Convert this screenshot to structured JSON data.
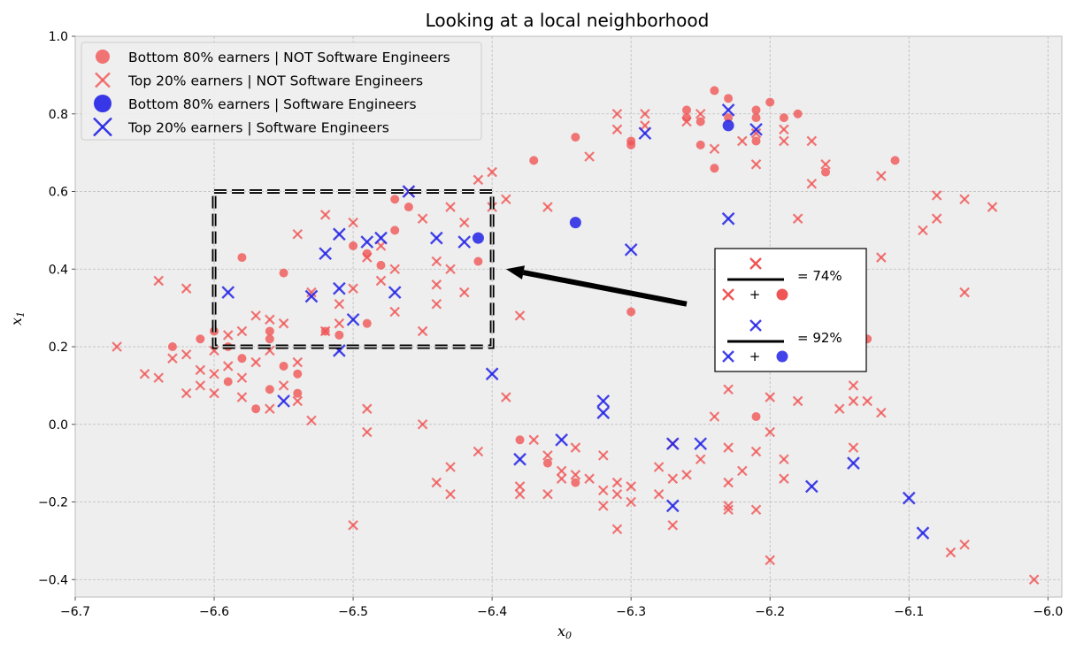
{
  "chart_data": {
    "type": "scatter",
    "title": "Looking at a local neighborhood",
    "xlabel": "x",
    "xlabel_sub": "0",
    "ylabel": "x",
    "ylabel_sub": "1",
    "xlim": [
      -6.7,
      -5.99
    ],
    "ylim": [
      -0.445,
      1.0
    ],
    "xticks": [
      -6.7,
      -6.6,
      -6.5,
      -6.4,
      -6.3,
      -6.2,
      -6.1,
      -6.0
    ],
    "xtick_labels": [
      "−6.7",
      "−6.6",
      "−6.5",
      "−6.4",
      "−6.3",
      "−6.2",
      "−6.1",
      "−6.0"
    ],
    "yticks": [
      1.0,
      0.8,
      0.6,
      0.4,
      0.2,
      0.0,
      -0.2,
      -0.4
    ],
    "ytick_labels": [
      "1.0",
      "0.8",
      "0.6",
      "0.4",
      "0.2",
      "0.0",
      "−0.2",
      "−0.4"
    ],
    "grid": true,
    "legend_position": "top-left",
    "colors": {
      "not_se": "#f05555",
      "se": "#2222e6",
      "background": "#eeeeee",
      "grid": "#bbbbbb"
    },
    "series": [
      {
        "name": "Bottom 80% earners | NOT Software Engineers",
        "marker": "circle",
        "color": "#f05555",
        "points": [
          [
            -6.63,
            0.2
          ],
          [
            -6.61,
            0.22
          ],
          [
            -6.6,
            0.24
          ],
          [
            -6.59,
            0.2
          ],
          [
            -6.59,
            0.11
          ],
          [
            -6.58,
            0.17
          ],
          [
            -6.58,
            0.43
          ],
          [
            -6.57,
            0.04
          ],
          [
            -6.56,
            0.24
          ],
          [
            -6.56,
            0.09
          ],
          [
            -6.56,
            0.22
          ],
          [
            -6.55,
            0.39
          ],
          [
            -6.55,
            0.15
          ],
          [
            -6.54,
            0.08
          ],
          [
            -6.54,
            0.13
          ],
          [
            -6.52,
            0.24
          ],
          [
            -6.51,
            0.23
          ],
          [
            -6.5,
            0.46
          ],
          [
            -6.49,
            0.26
          ],
          [
            -6.49,
            0.44
          ],
          [
            -6.48,
            0.41
          ],
          [
            -6.47,
            0.5
          ],
          [
            -6.47,
            0.58
          ],
          [
            -6.46,
            0.56
          ],
          [
            -6.41,
            0.42
          ],
          [
            -6.38,
            -0.04
          ],
          [
            -6.37,
            0.68
          ],
          [
            -6.36,
            -0.1
          ],
          [
            -6.34,
            -0.15
          ],
          [
            -6.34,
            0.74
          ],
          [
            -6.3,
            0.72
          ],
          [
            -6.3,
            0.73
          ],
          [
            -6.3,
            0.29
          ],
          [
            -6.26,
            0.81
          ],
          [
            -6.26,
            0.79
          ],
          [
            -6.25,
            0.78
          ],
          [
            -6.25,
            0.72
          ],
          [
            -6.24,
            0.86
          ],
          [
            -6.24,
            0.66
          ],
          [
            -6.23,
            0.79
          ],
          [
            -6.23,
            0.84
          ],
          [
            -6.21,
            0.79
          ],
          [
            -6.21,
            0.81
          ],
          [
            -6.21,
            0.73
          ],
          [
            -6.2,
            0.83
          ],
          [
            -6.19,
            0.79
          ],
          [
            -6.18,
            0.8
          ],
          [
            -6.16,
            0.65
          ],
          [
            -6.11,
            0.68
          ],
          [
            -6.13,
            0.22
          ],
          [
            -6.21,
            0.02
          ]
        ]
      },
      {
        "name": "Top 20% earners | NOT Software Engineers",
        "marker": "x",
        "color": "#f05555",
        "points": [
          [
            -6.67,
            0.2
          ],
          [
            -6.65,
            0.13
          ],
          [
            -6.64,
            0.37
          ],
          [
            -6.64,
            0.12
          ],
          [
            -6.63,
            0.17
          ],
          [
            -6.62,
            0.35
          ],
          [
            -6.62,
            0.08
          ],
          [
            -6.62,
            0.18
          ],
          [
            -6.61,
            0.14
          ],
          [
            -6.61,
            0.1
          ],
          [
            -6.6,
            0.19
          ],
          [
            -6.6,
            0.13
          ],
          [
            -6.6,
            0.08
          ],
          [
            -6.59,
            0.15
          ],
          [
            -6.59,
            0.23
          ],
          [
            -6.58,
            0.12
          ],
          [
            -6.58,
            0.07
          ],
          [
            -6.58,
            0.24
          ],
          [
            -6.57,
            0.28
          ],
          [
            -6.57,
            0.16
          ],
          [
            -6.56,
            0.19
          ],
          [
            -6.56,
            0.04
          ],
          [
            -6.56,
            0.27
          ],
          [
            -6.55,
            0.1
          ],
          [
            -6.55,
            0.26
          ],
          [
            -6.54,
            0.06
          ],
          [
            -6.54,
            0.49
          ],
          [
            -6.54,
            0.16
          ],
          [
            -6.53,
            0.34
          ],
          [
            -6.53,
            0.01
          ],
          [
            -6.52,
            0.24
          ],
          [
            -6.52,
            0.54
          ],
          [
            -6.51,
            0.31
          ],
          [
            -6.51,
            0.26
          ],
          [
            -6.5,
            0.52
          ],
          [
            -6.5,
            0.35
          ],
          [
            -6.49,
            0.43
          ],
          [
            -6.49,
            -0.02
          ],
          [
            -6.49,
            0.04
          ],
          [
            -6.48,
            0.37
          ],
          [
            -6.48,
            0.46
          ],
          [
            -6.47,
            0.29
          ],
          [
            -6.47,
            0.4
          ],
          [
            -6.46,
            0.6
          ],
          [
            -6.45,
            0.53
          ],
          [
            -6.45,
            0.24
          ],
          [
            -6.44,
            0.31
          ],
          [
            -6.44,
            0.36
          ],
          [
            -6.44,
            0.42
          ],
          [
            -6.43,
            0.4
          ],
          [
            -6.43,
            0.56
          ],
          [
            -6.42,
            0.52
          ],
          [
            -6.42,
            0.34
          ],
          [
            -6.41,
            0.63
          ],
          [
            -6.4,
            0.56
          ],
          [
            -6.4,
            0.65
          ],
          [
            -6.39,
            0.58
          ],
          [
            -6.39,
            0.07
          ],
          [
            -6.38,
            0.28
          ],
          [
            -6.43,
            -0.11
          ],
          [
            -6.43,
            -0.18
          ],
          [
            -6.44,
            -0.15
          ],
          [
            -6.41,
            -0.07
          ],
          [
            -6.45,
            0.0
          ],
          [
            -6.5,
            -0.26
          ],
          [
            -6.38,
            -0.16
          ],
          [
            -6.38,
            -0.18
          ],
          [
            -6.37,
            -0.04
          ],
          [
            -6.36,
            -0.08
          ],
          [
            -6.36,
            -0.18
          ],
          [
            -6.36,
            0.56
          ],
          [
            -6.35,
            -0.12
          ],
          [
            -6.35,
            -0.14
          ],
          [
            -6.34,
            -0.06
          ],
          [
            -6.34,
            -0.13
          ],
          [
            -6.33,
            -0.14
          ],
          [
            -6.33,
            0.69
          ],
          [
            -6.32,
            -0.17
          ],
          [
            -6.32,
            -0.08
          ],
          [
            -6.32,
            -0.21
          ],
          [
            -6.31,
            -0.15
          ],
          [
            -6.31,
            -0.18
          ],
          [
            -6.31,
            0.8
          ],
          [
            -6.31,
            0.76
          ],
          [
            -6.31,
            -0.27
          ],
          [
            -6.3,
            -0.16
          ],
          [
            -6.3,
            -0.2
          ],
          [
            -6.29,
            0.8
          ],
          [
            -6.29,
            0.77
          ],
          [
            -6.28,
            -0.18
          ],
          [
            -6.28,
            -0.11
          ],
          [
            -6.27,
            -0.05
          ],
          [
            -6.27,
            -0.26
          ],
          [
            -6.27,
            -0.14
          ],
          [
            -6.26,
            0.78
          ],
          [
            -6.26,
            -0.13
          ],
          [
            -6.25,
            0.8
          ],
          [
            -6.25,
            -0.09
          ],
          [
            -6.24,
            0.71
          ],
          [
            -6.24,
            0.02
          ],
          [
            -6.23,
            -0.15
          ],
          [
            -6.23,
            -0.22
          ],
          [
            -6.23,
            0.09
          ],
          [
            -6.23,
            -0.06
          ],
          [
            -6.22,
            0.73
          ],
          [
            -6.22,
            -0.12
          ],
          [
            -6.21,
            0.67
          ],
          [
            -6.21,
            -0.07
          ],
          [
            -6.21,
            0.75
          ],
          [
            -6.2,
            0.07
          ],
          [
            -6.2,
            -0.35
          ],
          [
            -6.2,
            -0.02
          ],
          [
            -6.19,
            -0.14
          ],
          [
            -6.19,
            0.73
          ],
          [
            -6.19,
            0.76
          ],
          [
            -6.18,
            0.53
          ],
          [
            -6.18,
            0.06
          ],
          [
            -6.17,
            0.62
          ],
          [
            -6.17,
            0.73
          ],
          [
            -6.16,
            0.67
          ],
          [
            -6.15,
            0.04
          ],
          [
            -6.14,
            0.1
          ],
          [
            -6.14,
            0.06
          ],
          [
            -6.14,
            -0.06
          ],
          [
            -6.13,
            0.06
          ],
          [
            -6.12,
            0.64
          ],
          [
            -6.12,
            0.43
          ],
          [
            -6.12,
            0.03
          ],
          [
            -6.09,
            0.5
          ],
          [
            -6.08,
            0.59
          ],
          [
            -6.08,
            0.53
          ],
          [
            -6.07,
            -0.33
          ],
          [
            -6.06,
            0.58
          ],
          [
            -6.06,
            0.34
          ],
          [
            -6.06,
            -0.31
          ],
          [
            -6.04,
            0.56
          ],
          [
            -6.01,
            -0.4
          ],
          [
            -6.19,
            -0.09
          ],
          [
            -6.21,
            -0.22
          ],
          [
            -6.23,
            -0.21
          ]
        ]
      },
      {
        "name": "Bottom 80% earners | Software Engineers",
        "marker": "circle",
        "color": "#2222e6",
        "points": [
          [
            -6.41,
            0.48
          ],
          [
            -6.34,
            0.52
          ],
          [
            -6.23,
            0.77
          ]
        ]
      },
      {
        "name": "Top 20% earners | Software Engineers",
        "marker": "x",
        "color": "#2222e6",
        "points": [
          [
            -6.59,
            0.34
          ],
          [
            -6.55,
            0.06
          ],
          [
            -6.53,
            0.33
          ],
          [
            -6.52,
            0.44
          ],
          [
            -6.51,
            0.35
          ],
          [
            -6.51,
            0.19
          ],
          [
            -6.51,
            0.49
          ],
          [
            -6.5,
            0.27
          ],
          [
            -6.49,
            0.47
          ],
          [
            -6.48,
            0.48
          ],
          [
            -6.47,
            0.34
          ],
          [
            -6.46,
            0.6
          ],
          [
            -6.44,
            0.48
          ],
          [
            -6.42,
            0.47
          ],
          [
            -6.4,
            0.13
          ],
          [
            -6.38,
            -0.09
          ],
          [
            -6.35,
            -0.04
          ],
          [
            -6.32,
            0.06
          ],
          [
            -6.32,
            0.03
          ],
          [
            -6.3,
            0.45
          ],
          [
            -6.29,
            0.75
          ],
          [
            -6.27,
            -0.21
          ],
          [
            -6.27,
            -0.05
          ],
          [
            -6.25,
            -0.05
          ],
          [
            -6.23,
            0.81
          ],
          [
            -6.23,
            0.53
          ],
          [
            -6.21,
            0.76
          ],
          [
            -6.17,
            -0.16
          ],
          [
            -6.14,
            -0.1
          ],
          [
            -6.1,
            -0.19
          ],
          [
            -6.09,
            -0.28
          ]
        ]
      }
    ],
    "highlight_box": {
      "x": [
        -6.6,
        -6.4
      ],
      "y": [
        0.2,
        0.6
      ]
    },
    "arrow": {
      "from": [
        -6.26,
        0.31
      ],
      "to": [
        -6.39,
        0.4
      ]
    },
    "inset": {
      "line1_result": "= 74%",
      "line1_plus": "+",
      "line2_result": "= 92%",
      "line2_plus": "+"
    }
  }
}
